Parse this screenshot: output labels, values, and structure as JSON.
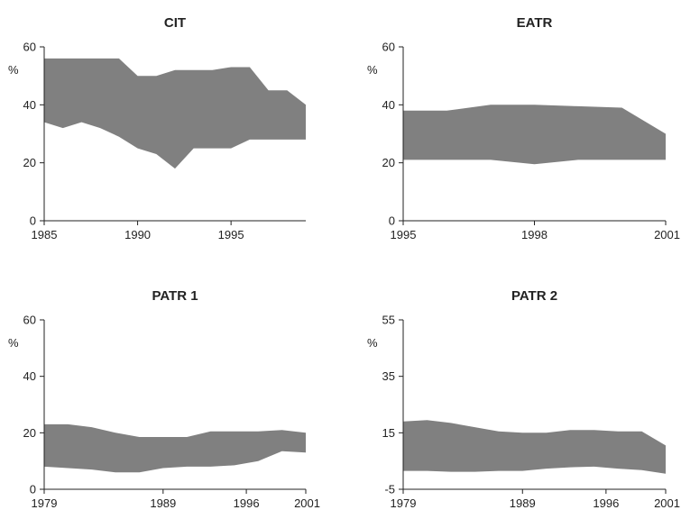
{
  "chart_data": [
    {
      "type": "area",
      "title": "CIT",
      "ylabel": "%",
      "xlim": [
        1985,
        1999
      ],
      "ylim": [
        0,
        60
      ],
      "yticks": [
        0,
        20,
        40,
        60
      ],
      "xticks": [
        1985,
        1990,
        1995
      ],
      "series": [
        {
          "role": "upper",
          "x": [
            1985,
            1986,
            1987,
            1988,
            1989,
            1990,
            1991,
            1992,
            1993,
            1994,
            1995,
            1996,
            1997,
            1998,
            1999
          ],
          "values": [
            56,
            56,
            56,
            56,
            56,
            50,
            50,
            52,
            52,
            52,
            53,
            53,
            45,
            45,
            40
          ]
        },
        {
          "role": "lower",
          "x": [
            1985,
            1986,
            1987,
            1988,
            1989,
            1990,
            1991,
            1992,
            1993,
            1994,
            1995,
            1996,
            1997,
            1998,
            1999
          ],
          "values": [
            34,
            32,
            34,
            32,
            29,
            25,
            23,
            18,
            25,
            25,
            25,
            28,
            28,
            28,
            28
          ]
        }
      ]
    },
    {
      "type": "area",
      "title": "EATR",
      "ylabel": "%",
      "xlim": [
        1995,
        2001
      ],
      "ylim": [
        0,
        60
      ],
      "yticks": [
        0,
        20,
        40,
        60
      ],
      "xticks": [
        1995,
        1998,
        2001
      ],
      "series": [
        {
          "role": "upper",
          "x": [
            1995,
            1996,
            1997,
            1998,
            1999,
            2000,
            2001
          ],
          "values": [
            38,
            38,
            40,
            40,
            39.5,
            39,
            30
          ]
        },
        {
          "role": "lower",
          "x": [
            1995,
            1996,
            1997,
            1998,
            1999,
            2000,
            2001
          ],
          "values": [
            21,
            21,
            21,
            19.5,
            21,
            21,
            21
          ]
        }
      ]
    },
    {
      "type": "area",
      "title": "PATR 1",
      "ylabel": "%",
      "xlim": [
        1979,
        2001
      ],
      "ylim": [
        0,
        60
      ],
      "yticks": [
        0,
        20,
        40,
        60
      ],
      "xticks": [
        1979,
        1989,
        1996,
        2001
      ],
      "series": [
        {
          "role": "upper",
          "x": [
            1979,
            1981,
            1983,
            1985,
            1987,
            1989,
            1991,
            1993,
            1995,
            1997,
            1999,
            2001
          ],
          "values": [
            23,
            23,
            22,
            20,
            18.5,
            18.5,
            18.5,
            20.5,
            20.5,
            20.5,
            21,
            20
          ]
        },
        {
          "role": "lower",
          "x": [
            1979,
            1981,
            1983,
            1985,
            1987,
            1989,
            1991,
            1993,
            1995,
            1997,
            1999,
            2001
          ],
          "values": [
            8,
            7.5,
            7,
            6,
            6,
            7.5,
            8,
            8,
            8.5,
            10,
            13.5,
            13
          ]
        }
      ]
    },
    {
      "type": "area",
      "title": "PATR 2",
      "ylabel": "%",
      "xlim": [
        1979,
        2001
      ],
      "ylim": [
        -5,
        55
      ],
      "yticks": [
        -5,
        15,
        35,
        55
      ],
      "xticks": [
        1979,
        1989,
        1996,
        2001
      ],
      "series": [
        {
          "role": "upper",
          "x": [
            1979,
            1981,
            1983,
            1985,
            1987,
            1989,
            1991,
            1993,
            1995,
            1997,
            1999,
            2001
          ],
          "values": [
            19,
            19.5,
            18.5,
            17,
            15.5,
            15,
            15,
            16,
            16,
            15.5,
            15.5,
            10.5
          ]
        },
        {
          "role": "lower",
          "x": [
            1979,
            1981,
            1983,
            1985,
            1987,
            1989,
            1991,
            1993,
            1995,
            1997,
            1999,
            2001
          ],
          "values": [
            1.5,
            1.5,
            1.2,
            1.2,
            1.5,
            1.5,
            2.3,
            2.8,
            3,
            2.3,
            1.8,
            0.5
          ]
        }
      ]
    }
  ]
}
